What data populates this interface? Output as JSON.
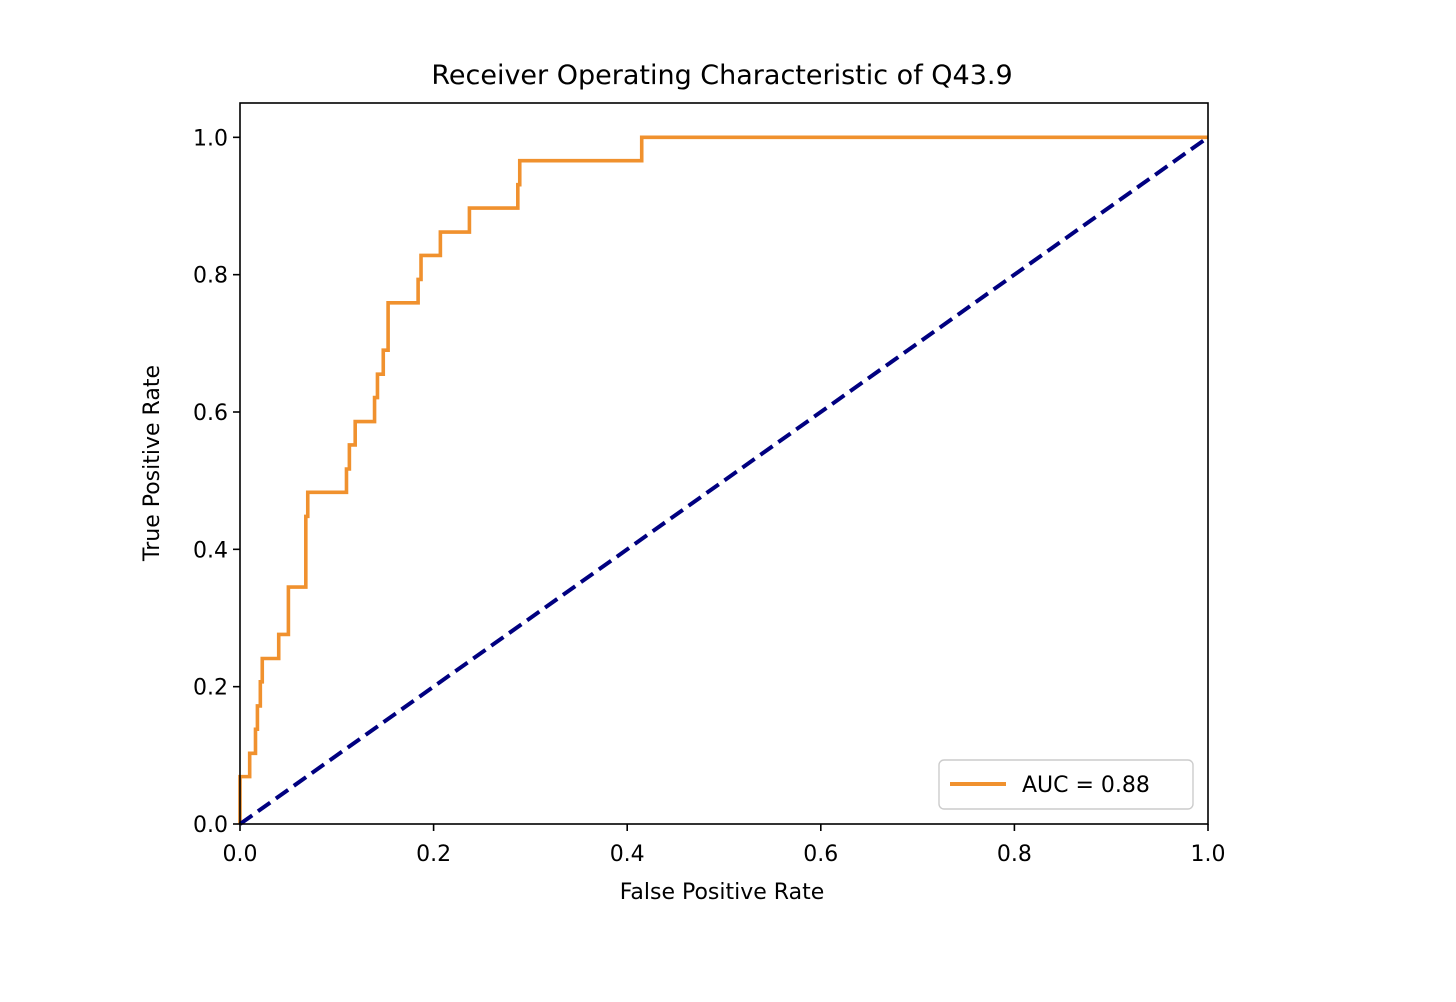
{
  "chart_data": {
    "type": "line",
    "title": "Receiver Operating Characteristic of Q43.9",
    "xlabel": "False Positive Rate",
    "ylabel": "True Positive Rate",
    "xlim": [
      0.0,
      1.0
    ],
    "ylim": [
      0.0,
      1.05
    ],
    "xticks": [
      "0.0",
      "0.2",
      "0.4",
      "0.6",
      "0.8",
      "1.0"
    ],
    "yticks": [
      "0.0",
      "0.2",
      "0.4",
      "0.6",
      "0.8",
      "1.0"
    ],
    "grid": false,
    "legend_position": "lower-right",
    "series": [
      {
        "name": "AUC = 0.88",
        "color": "#f0912e",
        "style": "solid",
        "x": [
          0.0,
          0.0,
          0.01,
          0.01,
          0.016,
          0.016,
          0.018,
          0.018,
          0.021,
          0.021,
          0.023,
          0.023,
          0.025,
          0.025,
          0.04,
          0.04,
          0.05,
          0.05,
          0.068,
          0.068,
          0.07,
          0.07,
          0.11,
          0.11,
          0.113,
          0.113,
          0.119,
          0.119,
          0.139,
          0.139,
          0.142,
          0.142,
          0.148,
          0.148,
          0.153,
          0.153,
          0.184,
          0.184,
          0.187,
          0.187,
          0.207,
          0.207,
          0.237,
          0.237,
          0.287,
          0.287,
          0.289,
          0.289,
          0.415,
          0.415,
          1.0
        ],
        "y": [
          0.0,
          0.069,
          0.069,
          0.103,
          0.103,
          0.138,
          0.138,
          0.172,
          0.172,
          0.207,
          0.207,
          0.241,
          0.241,
          0.241,
          0.241,
          0.276,
          0.276,
          0.345,
          0.345,
          0.448,
          0.448,
          0.483,
          0.483,
          0.517,
          0.517,
          0.552,
          0.552,
          0.586,
          0.586,
          0.621,
          0.621,
          0.655,
          0.655,
          0.69,
          0.69,
          0.759,
          0.759,
          0.793,
          0.793,
          0.828,
          0.828,
          0.862,
          0.862,
          0.897,
          0.897,
          0.931,
          0.931,
          0.966,
          0.966,
          1.0,
          1.0
        ]
      },
      {
        "name": "",
        "color": "#000080",
        "style": "dashed",
        "x": [
          0.0,
          1.0
        ],
        "y": [
          0.0,
          1.0
        ]
      }
    ]
  }
}
